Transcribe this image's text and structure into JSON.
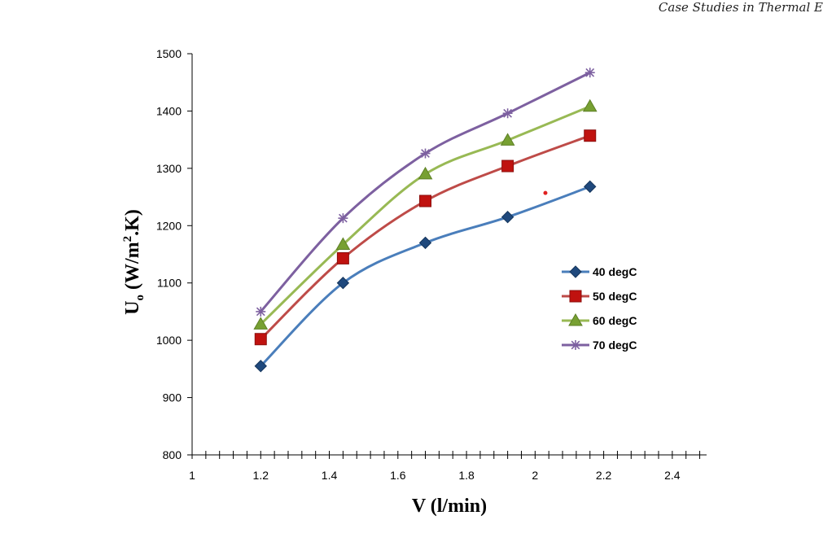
{
  "header": {
    "journal_title": "Case Studies in Thermal E"
  },
  "chart_data": {
    "type": "line",
    "title": "",
    "xlabel": "V (l/min)",
    "ylabel_main": "U",
    "ylabel_sub": "o",
    "ylabel_rest": " (W/m",
    "ylabel_sup": "2",
    "ylabel_end": ".K)",
    "xlim": [
      1,
      2.5
    ],
    "ylim": [
      800,
      1500
    ],
    "x_ticks": [
      "1",
      "1.2",
      "1.4",
      "1.6",
      "1.8",
      "2",
      "2.2",
      "2.4"
    ],
    "x_tick_values": [
      1,
      1.2,
      1.4,
      1.6,
      1.8,
      2,
      2.2,
      2.4
    ],
    "y_ticks": [
      "800",
      "900",
      "1000",
      "1100",
      "1200",
      "1300",
      "1400",
      "1500"
    ],
    "y_tick_values": [
      800,
      900,
      1000,
      1100,
      1200,
      1300,
      1400,
      1500
    ],
    "x_minor_step": 0.04,
    "legend_position": "center-right",
    "x": [
      1.2,
      1.44,
      1.68,
      1.92,
      2.16
    ],
    "series": [
      {
        "name": "40 degC",
        "color": "#4A7EBB",
        "marker": "diamond",
        "marker_color": "#1F497D",
        "values": [
          955,
          1100,
          1170,
          1215,
          1268
        ]
      },
      {
        "name": "50 degC",
        "color": "#BE4B48",
        "marker": "square",
        "marker_color": "#C0120F",
        "values": [
          1002,
          1143,
          1243,
          1304,
          1357
        ]
      },
      {
        "name": "60 degC",
        "color": "#98B954",
        "marker": "triangle",
        "marker_color": "#77A032",
        "values": [
          1028,
          1167,
          1290,
          1349,
          1408
        ]
      },
      {
        "name": "70 degC",
        "color": "#7D60A0",
        "marker": "star",
        "marker_color": "#7D60A0",
        "values": [
          1050,
          1213,
          1326,
          1396,
          1467
        ]
      }
    ],
    "annotation": {
      "type": "point",
      "x": 2.03,
      "y": 1257,
      "color": "#E02020"
    }
  }
}
